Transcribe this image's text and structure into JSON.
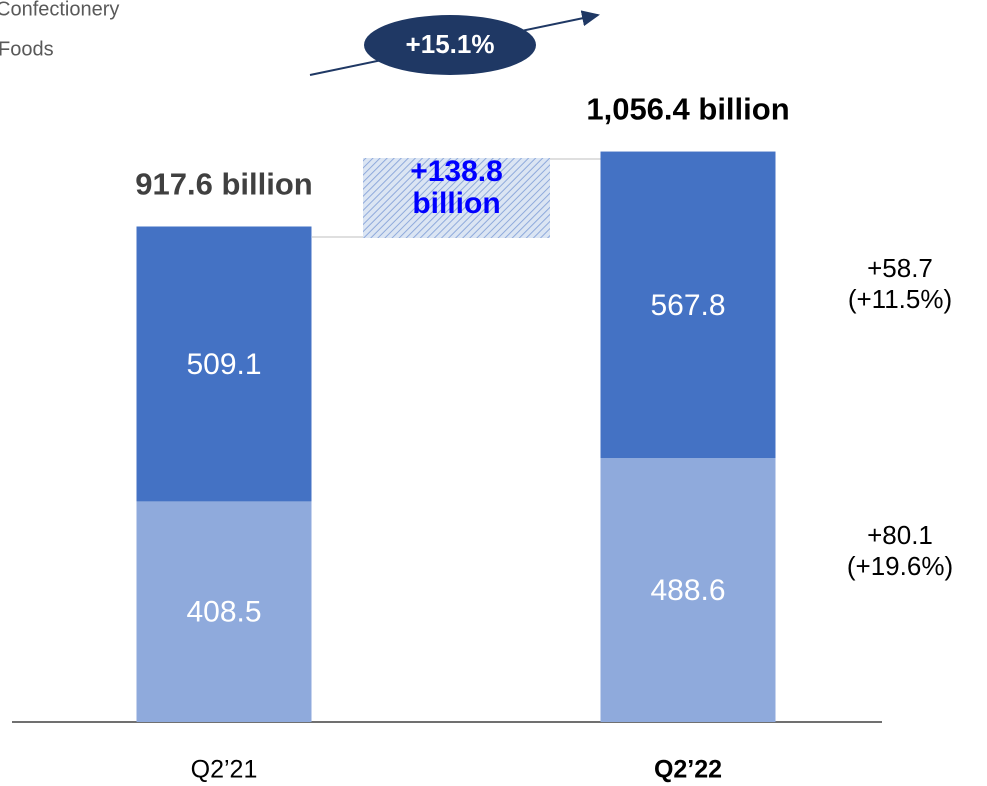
{
  "chart_data": {
    "type": "bar",
    "stacked": true,
    "categories": [
      "Q2’21",
      "Q2’22"
    ],
    "series": [
      {
        "name": "Foods",
        "color": "#8faadc",
        "values": [
          408.5,
          488.6
        ]
      },
      {
        "name": "Confectionery",
        "color": "#4472c4",
        "values": [
          509.1,
          567.8
        ]
      }
    ],
    "annotations": {
      "totals": [
        "917.6 billion",
        "1,056.4 billion"
      ],
      "difference": "+138.8 billion",
      "growth": "+15.1%",
      "series_changes": [
        "+80.1 (+19.6%)",
        "+58.7 (+11.5%)"
      ]
    }
  }
}
